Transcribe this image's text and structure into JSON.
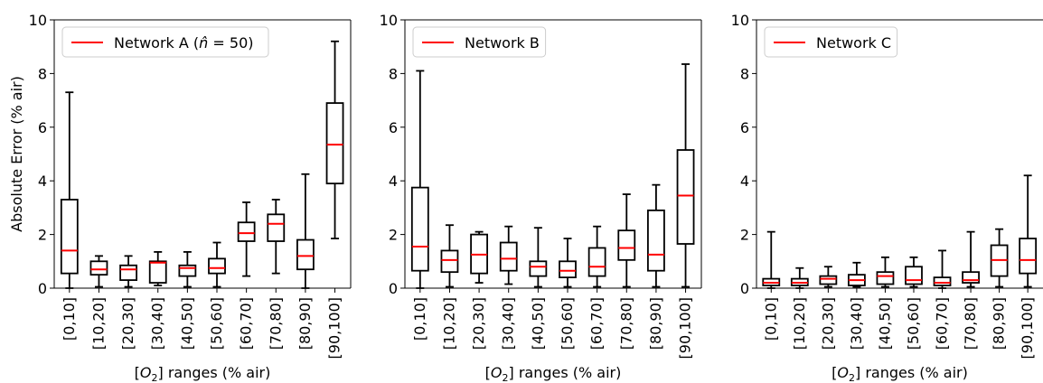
{
  "chart_data": [
    {
      "type": "box",
      "panel": "Network A",
      "legend": [
        {
          "label": "Network A (n̂ = 50)",
          "color": "#ff0000"
        }
      ],
      "legend_position": "top-left",
      "ylabel": "Absolute Error (% air)",
      "xlabel": "[O2] ranges (% air)",
      "ylim": [
        0,
        10
      ],
      "yticks": [
        "0",
        "2",
        "4",
        "6",
        "8",
        "10"
      ],
      "categories": [
        "[0,10]",
        "[10,20]",
        "[20,30]",
        "[30,40]",
        "[40,50]",
        "[50,60]",
        "[60,70]",
        "[70,80]",
        "[80,90]",
        "[90,100]"
      ],
      "boxes": [
        {
          "min": 0.0,
          "q1": 0.55,
          "median": 1.4,
          "q3": 3.3,
          "max": 7.3
        },
        {
          "min": 0.05,
          "q1": 0.5,
          "median": 0.7,
          "q3": 1.0,
          "max": 1.2
        },
        {
          "min": 0.05,
          "q1": 0.3,
          "median": 0.7,
          "q3": 0.85,
          "max": 1.2
        },
        {
          "min": 0.1,
          "q1": 0.2,
          "median": 0.95,
          "q3": 1.0,
          "max": 1.35
        },
        {
          "min": 0.05,
          "q1": 0.45,
          "median": 0.75,
          "q3": 0.85,
          "max": 1.35
        },
        {
          "min": 0.05,
          "q1": 0.55,
          "median": 0.75,
          "q3": 1.1,
          "max": 1.7
        },
        {
          "min": 0.45,
          "q1": 1.75,
          "median": 2.05,
          "q3": 2.45,
          "max": 3.2
        },
        {
          "min": 0.55,
          "q1": 1.75,
          "median": 2.4,
          "q3": 2.75,
          "max": 3.3
        },
        {
          "min": 0.0,
          "q1": 0.7,
          "median": 1.2,
          "q3": 1.8,
          "max": 4.25
        },
        {
          "min": 1.85,
          "q1": 3.9,
          "median": 5.35,
          "q3": 6.9,
          "max": 9.2
        }
      ]
    },
    {
      "type": "box",
      "panel": "Network B",
      "legend": [
        {
          "label": "Network B",
          "color": "#ff0000"
        }
      ],
      "legend_position": "top-left",
      "ylabel": "",
      "xlabel": "[O2] ranges (% air)",
      "ylim": [
        0,
        10
      ],
      "yticks": [
        "0",
        "2",
        "4",
        "6",
        "8",
        "10"
      ],
      "categories": [
        "[0,10]",
        "[10,20]",
        "[20,30]",
        "[30,40]",
        "[40,50]",
        "[50,60]",
        "[60,70]",
        "[70,80]",
        "[80,90]",
        "[90,100]"
      ],
      "boxes": [
        {
          "min": 0.0,
          "q1": 0.65,
          "median": 1.55,
          "q3": 3.75,
          "max": 8.1
        },
        {
          "min": 0.05,
          "q1": 0.6,
          "median": 1.05,
          "q3": 1.4,
          "max": 2.35
        },
        {
          "min": 0.2,
          "q1": 0.55,
          "median": 1.25,
          "q3": 2.0,
          "max": 2.1
        },
        {
          "min": 0.15,
          "q1": 0.65,
          "median": 1.1,
          "q3": 1.7,
          "max": 2.3
        },
        {
          "min": 0.05,
          "q1": 0.45,
          "median": 0.8,
          "q3": 1.0,
          "max": 2.25
        },
        {
          "min": 0.05,
          "q1": 0.4,
          "median": 0.65,
          "q3": 1.0,
          "max": 1.85
        },
        {
          "min": 0.05,
          "q1": 0.45,
          "median": 0.8,
          "q3": 1.5,
          "max": 2.3
        },
        {
          "min": 0.05,
          "q1": 1.05,
          "median": 1.5,
          "q3": 2.15,
          "max": 3.5
        },
        {
          "min": 0.05,
          "q1": 0.65,
          "median": 1.25,
          "q3": 2.9,
          "max": 3.85
        },
        {
          "min": 0.05,
          "q1": 1.65,
          "median": 3.45,
          "q3": 5.15,
          "max": 8.35
        }
      ]
    },
    {
      "type": "box",
      "panel": "Network C",
      "legend": [
        {
          "label": "Network C",
          "color": "#ff0000"
        }
      ],
      "legend_position": "top-left",
      "ylabel": "",
      "xlabel": "[O2] ranges (% air)",
      "ylim": [
        0,
        10
      ],
      "yticks": [
        "0",
        "2",
        "4",
        "6",
        "8",
        "10"
      ],
      "categories": [
        "[0,10]",
        "[10,20]",
        "[20,30]",
        "[30,40]",
        "[40,50]",
        "[50,60]",
        "[60,70]",
        "[70,80]",
        "[80,90]",
        "[90,100]"
      ],
      "boxes": [
        {
          "min": 0.0,
          "q1": 0.1,
          "median": 0.2,
          "q3": 0.35,
          "max": 2.1
        },
        {
          "min": 0.0,
          "q1": 0.1,
          "median": 0.2,
          "q3": 0.35,
          "max": 0.75
        },
        {
          "min": 0.05,
          "q1": 0.15,
          "median": 0.35,
          "q3": 0.45,
          "max": 0.8
        },
        {
          "min": 0.05,
          "q1": 0.1,
          "median": 0.3,
          "q3": 0.5,
          "max": 0.95
        },
        {
          "min": 0.05,
          "q1": 0.15,
          "median": 0.45,
          "q3": 0.6,
          "max": 1.15
        },
        {
          "min": 0.05,
          "q1": 0.15,
          "median": 0.3,
          "q3": 0.8,
          "max": 1.15
        },
        {
          "min": 0.0,
          "q1": 0.1,
          "median": 0.2,
          "q3": 0.4,
          "max": 1.4
        },
        {
          "min": 0.05,
          "q1": 0.2,
          "median": 0.3,
          "q3": 0.6,
          "max": 2.1
        },
        {
          "min": 0.05,
          "q1": 0.45,
          "median": 1.05,
          "q3": 1.6,
          "max": 2.2
        },
        {
          "min": 0.05,
          "q1": 0.55,
          "median": 1.05,
          "q3": 1.85,
          "max": 4.2
        }
      ]
    }
  ]
}
